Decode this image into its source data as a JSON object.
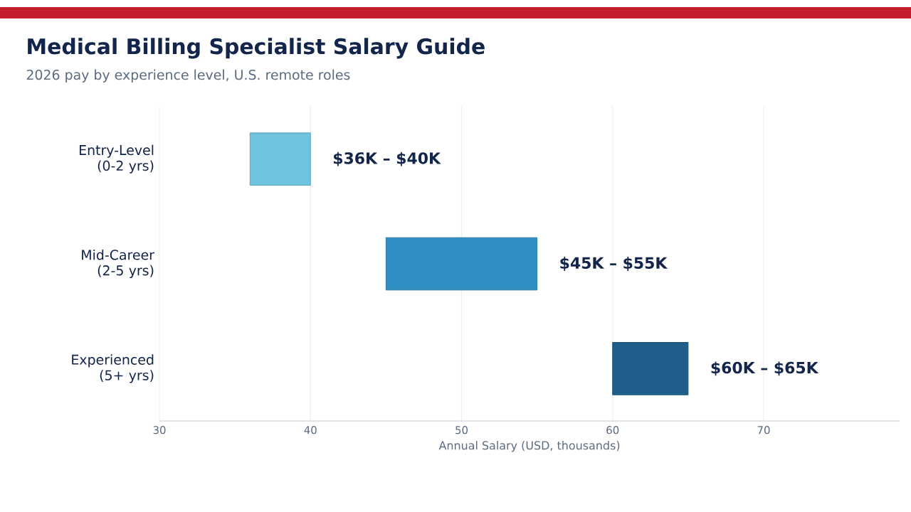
{
  "chart_data": {
    "type": "bar",
    "orientation": "horizontal",
    "title": "Medical Billing Specialist Salary Guide",
    "subtitle": "2026 pay by experience level, U.S. remote roles",
    "xlabel": "Annual Salary (USD, thousands)",
    "categories": [
      "Entry-Level (0-2 yrs)",
      "Mid-Career (2-5 yrs)",
      "Experienced (5+ yrs)"
    ],
    "base": [
      36,
      45,
      60
    ],
    "values": [
      4,
      10,
      5
    ],
    "colors": [
      "#70c3df",
      "#2f8fc3",
      "#1f5e8b"
    ],
    "annotations": [
      {
        "text": "$36K – $40K",
        "x": 40,
        "y": "Entry-Level (0-2 yrs)"
      },
      {
        "text": "$45K – $55K",
        "x": 55,
        "y": "Mid-Career (2-5 yrs)"
      },
      {
        "text": "$60K – $65K",
        "x": 65,
        "y": "Experienced (5+ yrs)"
      }
    ],
    "xlim": [
      30,
      79
    ],
    "xticks": [
      30,
      40,
      50,
      60,
      70
    ],
    "grid": "x"
  }
}
